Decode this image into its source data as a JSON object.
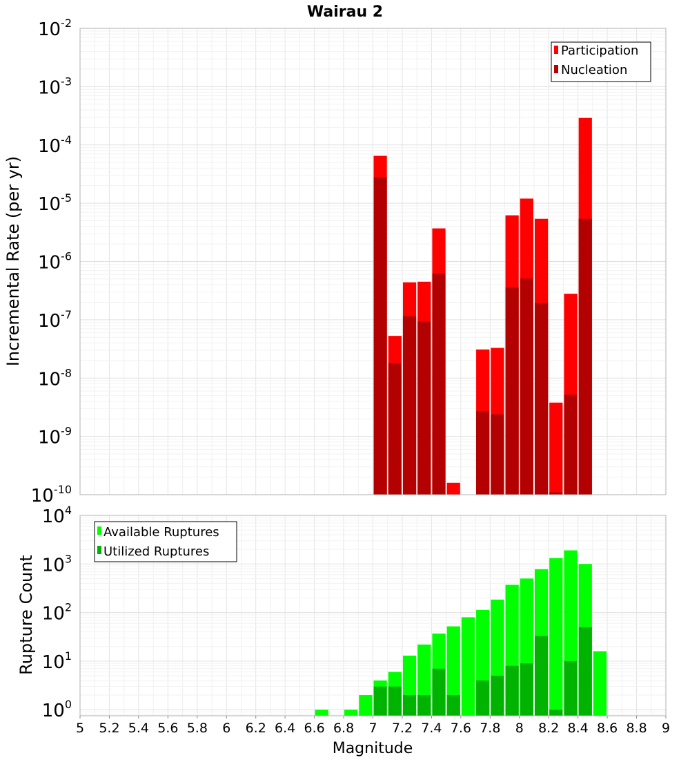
{
  "chart_data": [
    {
      "type": "bar",
      "title": "Wairau 2",
      "xlabel": "",
      "ylabel": "Incremental Rate (per yr)",
      "yscale": "log",
      "ylim": [
        1e-10,
        0.01
      ],
      "xlim": [
        5,
        9
      ],
      "grid": true,
      "legend_position": "top-right",
      "bin_width": 0.1,
      "y_ticks": [
        {
          "base": "10",
          "exp": "-10",
          "value": 1e-10
        },
        {
          "base": "10",
          "exp": "-9",
          "value": 1e-09
        },
        {
          "base": "10",
          "exp": "-8",
          "value": 1e-08
        },
        {
          "base": "10",
          "exp": "-7",
          "value": 1e-07
        },
        {
          "base": "10",
          "exp": "-6",
          "value": 1e-06
        },
        {
          "base": "10",
          "exp": "-5",
          "value": 1e-05
        },
        {
          "base": "10",
          "exp": "-4",
          "value": 0.0001
        },
        {
          "base": "10",
          "exp": "-3",
          "value": 0.001
        },
        {
          "base": "10",
          "exp": "-2",
          "value": 0.01
        }
      ],
      "series": [
        {
          "name": "Participation",
          "color": "#ff0000",
          "x": [
            7.05,
            7.15,
            7.25,
            7.35,
            7.45,
            7.55,
            7.75,
            7.85,
            7.95,
            8.05,
            8.15,
            8.25,
            8.35,
            8.45
          ],
          "values": [
            6.5e-05,
            5.3e-08,
            4.4e-07,
            4.5e-07,
            3.7e-06,
            1.6e-10,
            3.1e-08,
            3.3e-08,
            6.2e-06,
            1.2e-05,
            5.4e-06,
            3.8e-09,
            2.8e-07,
            0.00029
          ]
        },
        {
          "name": "Nucleation",
          "color": "#b30000",
          "x": [
            7.05,
            7.15,
            7.25,
            7.35,
            7.45,
            7.75,
            7.85,
            7.95,
            8.05,
            8.15,
            8.25,
            8.35,
            8.45
          ],
          "values": [
            2.8e-05,
            1.8e-08,
            1.15e-07,
            9.3e-08,
            6.2e-07,
            2.7e-09,
            2.4e-09,
            3.6e-07,
            5.1e-07,
            1.95e-07,
            1.1e-10,
            5.2e-09,
            5.4e-06
          ]
        }
      ]
    },
    {
      "type": "bar",
      "title": "",
      "xlabel": "Magnitude",
      "ylabel": "Rupture Count",
      "yscale": "log",
      "ylim": [
        0.75,
        10000
      ],
      "xlim": [
        5,
        9
      ],
      "grid": true,
      "legend_position": "top-left",
      "bin_width": 0.1,
      "x_ticks": [
        "5",
        "5.2",
        "5.4",
        "5.6",
        "5.8",
        "6",
        "6.2",
        "6.4",
        "6.6",
        "6.8",
        "7",
        "7.2",
        "7.4",
        "7.6",
        "7.8",
        "8",
        "8.2",
        "8.4",
        "8.6",
        "8.8",
        "9"
      ],
      "y_ticks": [
        {
          "base": "10",
          "exp": "0",
          "value": 1
        },
        {
          "base": "10",
          "exp": "1",
          "value": 10
        },
        {
          "base": "10",
          "exp": "2",
          "value": 100
        },
        {
          "base": "10",
          "exp": "3",
          "value": 1000
        },
        {
          "base": "10",
          "exp": "4",
          "value": 10000
        }
      ],
      "series": [
        {
          "name": "Available Ruptures",
          "color": "#00ff00",
          "x": [
            6.65,
            6.85,
            6.95,
            7.05,
            7.15,
            7.25,
            7.35,
            7.45,
            7.55,
            7.65,
            7.75,
            7.85,
            7.95,
            8.05,
            8.15,
            8.25,
            8.35,
            8.45,
            8.55
          ],
          "values": [
            1,
            1,
            2,
            4,
            6,
            13,
            22,
            37,
            52,
            80,
            113,
            185,
            372,
            502,
            780,
            1320,
            1910,
            1000,
            16
          ]
        },
        {
          "name": "Utilized Ruptures",
          "color": "#00b300",
          "x": [
            7.05,
            7.15,
            7.25,
            7.35,
            7.45,
            7.55,
            7.75,
            7.85,
            7.95,
            8.05,
            8.15,
            8.25,
            8.35,
            8.45
          ],
          "values": [
            3,
            3,
            2,
            2,
            7,
            2,
            4,
            5,
            8,
            9,
            33,
            1,
            10,
            50
          ]
        }
      ]
    }
  ]
}
